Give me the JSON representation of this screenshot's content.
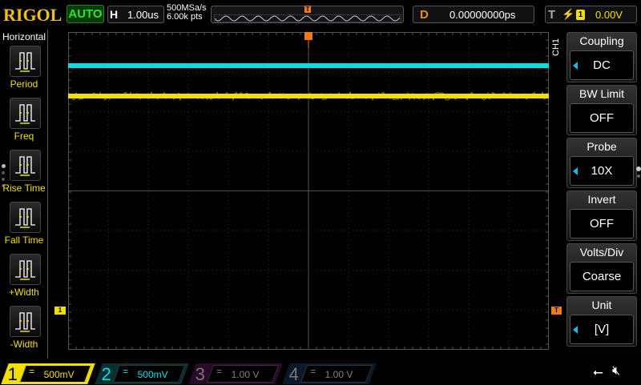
{
  "brand": "RIGOL",
  "run_mode": "AUTO",
  "timebase": {
    "key": "H",
    "value": "1.00us"
  },
  "acquisition": {
    "sample_rate": "500MSa/s",
    "memory_depth": "6.00k pts"
  },
  "delay": {
    "key": "D",
    "value": "0.00000000ps"
  },
  "trigger": {
    "key": "T",
    "edge": "rising",
    "source": "1",
    "level": "0.00V"
  },
  "left_menu": {
    "title": "Horizontal",
    "items": [
      {
        "label": "Period",
        "icon": "period-icon"
      },
      {
        "label": "Freq",
        "icon": "frequency-icon"
      },
      {
        "label": "Rise Time",
        "icon": "rise-time-icon"
      },
      {
        "label": "Fall Time",
        "icon": "fall-time-icon"
      },
      {
        "label": "+Width",
        "icon": "positive-width-icon"
      },
      {
        "label": "-Width",
        "icon": "negative-width-icon"
      }
    ]
  },
  "right_menu": {
    "channel": "CH1",
    "items": [
      {
        "title": "Coupling",
        "value": "DC",
        "arrow": true
      },
      {
        "title": "BW Limit",
        "value": "OFF",
        "arrow": false
      },
      {
        "title": "Probe",
        "value": "10X",
        "arrow": true
      },
      {
        "title": "Invert",
        "value": "OFF",
        "arrow": false
      },
      {
        "title": "Volts/Div",
        "value": "Coarse",
        "arrow": false
      },
      {
        "title": "Unit",
        "value": "[V]",
        "arrow": true
      }
    ]
  },
  "channels": [
    {
      "num": "1",
      "coupling": "=",
      "scale": "500mV",
      "color": "#f0e000",
      "active": true
    },
    {
      "num": "2",
      "coupling": "=",
      "scale": "500mV",
      "color": "#00e0e0",
      "active": true
    },
    {
      "num": "3",
      "coupling": "=",
      "scale": "1.00 V",
      "color": "#808080",
      "active": false
    },
    {
      "num": "4",
      "coupling": "=",
      "scale": "1.00 V",
      "color": "#808080",
      "active": false
    }
  ],
  "markers": {
    "ch1": "1",
    "trigger": "T"
  },
  "colors": {
    "ch1": "#f0e000",
    "ch2": "#00e0e0",
    "ch3": "#c020c0",
    "ch4": "#2060c0",
    "trigger": "#f07a1a"
  }
}
